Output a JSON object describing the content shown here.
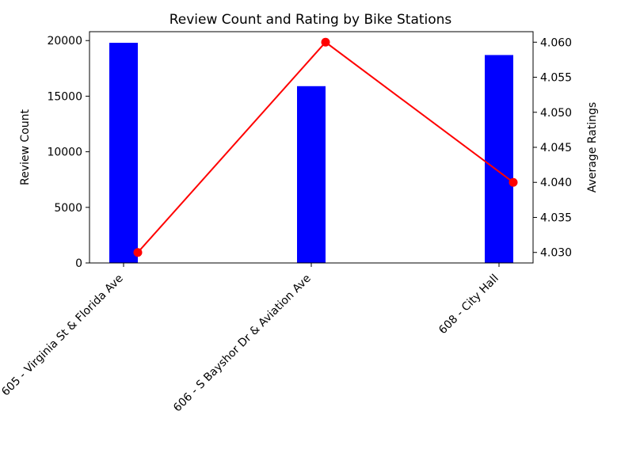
{
  "chart_data": {
    "type": "bar",
    "title": "Review Count and Rating by Bike Stations",
    "xlabel": "",
    "categories": [
      "605 - Virginia St & Florida Ave",
      "606 - S Bayshor Dr & Aviation Ave",
      "608 - City Hall"
    ],
    "left_axis": {
      "label": "Review Count",
      "ylim": [
        0,
        20800
      ],
      "ticks": [
        0,
        5000,
        10000,
        15000,
        20000
      ]
    },
    "right_axis": {
      "label": "Average Ratings",
      "ylim": [
        4.0285,
        4.0615
      ],
      "ticks": [
        "4.030",
        "4.035",
        "4.040",
        "4.045",
        "4.050",
        "4.055",
        "4.060"
      ]
    },
    "series": [
      {
        "type": "bar",
        "axis": "left",
        "color": "#0000ff",
        "values": [
          19800,
          15900,
          18700
        ]
      },
      {
        "type": "line",
        "axis": "right",
        "color": "#ff0000",
        "values": [
          4.03,
          4.06,
          4.04
        ]
      }
    ],
    "grid": false,
    "legend": "none"
  }
}
